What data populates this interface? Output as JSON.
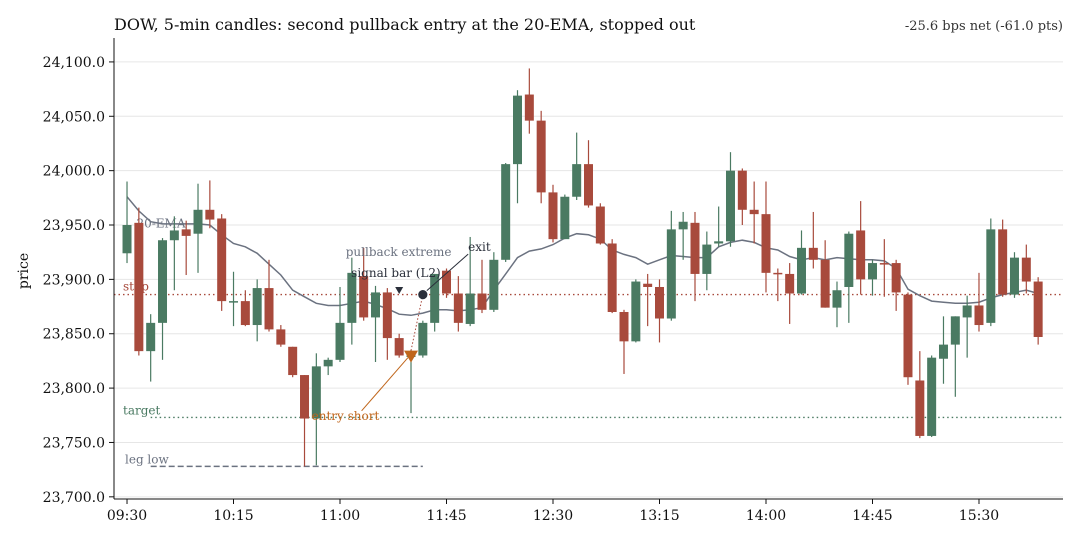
{
  "chart_data": {
    "type": "candlestick",
    "title": "DOW, 5-min candles: second pullback entry at the 20-EMA, stopped out",
    "subtitle": "-25.6 bps net (-61.0 pts)",
    "ylabel": "price",
    "xlabel": "",
    "ylim": [
      23698,
      24122
    ],
    "yticks": [
      23700,
      23750,
      23800,
      23850,
      23900,
      23950,
      24000,
      24050,
      24100
    ],
    "ytick_labels": [
      "23,700.0",
      "23,750.0",
      "23,800.0",
      "23,850.0",
      "23,900.0",
      "23,950.0",
      "24,000.0",
      "24,050.0",
      "24,100.0"
    ],
    "xlim": [
      -1.1,
      79.1
    ],
    "xticks": [
      0,
      9,
      18,
      27,
      36,
      45,
      54,
      63,
      72
    ],
    "xtick_labels": [
      "09:30",
      "10:15",
      "11:00",
      "11:45",
      "12:30",
      "13:15",
      "14:00",
      "14:45",
      "15:30"
    ],
    "grid": "horizontal",
    "colors": {
      "up": "#4a7a62",
      "down": "#a84a3c",
      "ema": "#6b7280",
      "stop": "#a84a3c",
      "target": "#4a7a62",
      "leg_low": "#6b7280",
      "entry": "#c0661c",
      "exit": "#2a2f3a",
      "signal": "#2a2f3a"
    },
    "candles": [
      {
        "t": 0,
        "o": 23924,
        "h": 23990,
        "l": 23915,
        "c": 23950
      },
      {
        "t": 1,
        "o": 23952,
        "h": 23966,
        "l": 23830,
        "c": 23834
      },
      {
        "t": 2,
        "o": 23834,
        "h": 23868,
        "l": 23806,
        "c": 23860
      },
      {
        "t": 3,
        "o": 23860,
        "h": 23938,
        "l": 23826,
        "c": 23936
      },
      {
        "t": 4,
        "o": 23936,
        "h": 23958,
        "l": 23890,
        "c": 23945
      },
      {
        "t": 5,
        "o": 23946,
        "h": 23954,
        "l": 23904,
        "c": 23940
      },
      {
        "t": 6,
        "o": 23942,
        "h": 23988,
        "l": 23906,
        "c": 23964
      },
      {
        "t": 7,
        "o": 23964,
        "h": 23991,
        "l": 23947,
        "c": 23955
      },
      {
        "t": 8,
        "o": 23956,
        "h": 23960,
        "l": 23871,
        "c": 23880
      },
      {
        "t": 9,
        "o": 23880,
        "h": 23907,
        "l": 23857,
        "c": 23880
      },
      {
        "t": 10,
        "o": 23880,
        "h": 23890,
        "l": 23857,
        "c": 23858
      },
      {
        "t": 11,
        "o": 23858,
        "h": 23900,
        "l": 23843,
        "c": 23892
      },
      {
        "t": 12,
        "o": 23892,
        "h": 23918,
        "l": 23852,
        "c": 23854
      },
      {
        "t": 13,
        "o": 23854,
        "h": 23858,
        "l": 23838,
        "c": 23840
      },
      {
        "t": 14,
        "o": 23838,
        "h": 23838,
        "l": 23810,
        "c": 23812
      },
      {
        "t": 15,
        "o": 23812,
        "h": 23812,
        "l": 23728,
        "c": 23772
      },
      {
        "t": 16,
        "o": 23772,
        "h": 23832,
        "l": 23729,
        "c": 23820
      },
      {
        "t": 17,
        "o": 23820,
        "h": 23828,
        "l": 23812,
        "c": 23826
      },
      {
        "t": 18,
        "o": 23826,
        "h": 23893,
        "l": 23824,
        "c": 23860
      },
      {
        "t": 19,
        "o": 23860,
        "h": 23920,
        "l": 23840,
        "c": 23906
      },
      {
        "t": 20,
        "o": 23903,
        "h": 23929,
        "l": 23862,
        "c": 23865
      },
      {
        "t": 21,
        "o": 23865,
        "h": 23894,
        "l": 23824,
        "c": 23888
      },
      {
        "t": 22,
        "o": 23888,
        "h": 23892,
        "l": 23826,
        "c": 23846
      },
      {
        "t": 23,
        "o": 23846,
        "h": 23850,
        "l": 23828,
        "c": 23830
      },
      {
        "t": 24,
        "o": 23830,
        "h": 23835,
        "l": 23777,
        "c": 23830
      },
      {
        "t": 25,
        "o": 23830,
        "h": 23862,
        "l": 23828,
        "c": 23860
      },
      {
        "t": 26,
        "o": 23860,
        "h": 23905,
        "l": 23852,
        "c": 23905
      },
      {
        "t": 27,
        "o": 23908,
        "h": 23910,
        "l": 23883,
        "c": 23887
      },
      {
        "t": 28,
        "o": 23887,
        "h": 23903,
        "l": 23852,
        "c": 23860
      },
      {
        "t": 29,
        "o": 23859,
        "h": 23939,
        "l": 23857,
        "c": 23887
      },
      {
        "t": 30,
        "o": 23887,
        "h": 23918,
        "l": 23869,
        "c": 23872
      },
      {
        "t": 31,
        "o": 23872,
        "h": 23925,
        "l": 23870,
        "c": 23918
      },
      {
        "t": 32,
        "o": 23918,
        "h": 24007,
        "l": 23916,
        "c": 24006
      },
      {
        "t": 33,
        "o": 24006,
        "h": 24074,
        "l": 23970,
        "c": 24069
      },
      {
        "t": 34,
        "o": 24070,
        "h": 24094,
        "l": 24034,
        "c": 24046
      },
      {
        "t": 35,
        "o": 24046,
        "h": 24055,
        "l": 23970,
        "c": 23980
      },
      {
        "t": 36,
        "o": 23980,
        "h": 23987,
        "l": 23934,
        "c": 23937
      },
      {
        "t": 37,
        "o": 23937,
        "h": 23978,
        "l": 23937,
        "c": 23976
      },
      {
        "t": 38,
        "o": 23976,
        "h": 24035,
        "l": 23973,
        "c": 24006
      },
      {
        "t": 39,
        "o": 24006,
        "h": 24028,
        "l": 23966,
        "c": 23968
      },
      {
        "t": 40,
        "o": 23967,
        "h": 23970,
        "l": 23932,
        "c": 23933
      },
      {
        "t": 41,
        "o": 23933,
        "h": 23937,
        "l": 23869,
        "c": 23870
      },
      {
        "t": 42,
        "o": 23870,
        "h": 23872,
        "l": 23813,
        "c": 23843
      },
      {
        "t": 43,
        "o": 23843,
        "h": 23900,
        "l": 23842,
        "c": 23898
      },
      {
        "t": 44,
        "o": 23896,
        "h": 23905,
        "l": 23857,
        "c": 23893
      },
      {
        "t": 45,
        "o": 23893,
        "h": 23900,
        "l": 23842,
        "c": 23864
      },
      {
        "t": 46,
        "o": 23864,
        "h": 23963,
        "l": 23862,
        "c": 23946
      },
      {
        "t": 47,
        "o": 23946,
        "h": 23962,
        "l": 23918,
        "c": 23953
      },
      {
        "t": 48,
        "o": 23952,
        "h": 23962,
        "l": 23880,
        "c": 23905
      },
      {
        "t": 49,
        "o": 23905,
        "h": 23944,
        "l": 23890,
        "c": 23932
      },
      {
        "t": 50,
        "o": 23933,
        "h": 23967,
        "l": 23930,
        "c": 23935
      },
      {
        "t": 51,
        "o": 23935,
        "h": 24017,
        "l": 23930,
        "c": 24000
      },
      {
        "t": 52,
        "o": 24000,
        "h": 24002,
        "l": 23950,
        "c": 23964
      },
      {
        "t": 53,
        "o": 23964,
        "h": 23990,
        "l": 23933,
        "c": 23960
      },
      {
        "t": 54,
        "o": 23960,
        "h": 23990,
        "l": 23888,
        "c": 23906
      },
      {
        "t": 55,
        "o": 23906,
        "h": 23910,
        "l": 23880,
        "c": 23905
      },
      {
        "t": 56,
        "o": 23905,
        "h": 23915,
        "l": 23859,
        "c": 23887
      },
      {
        "t": 57,
        "o": 23887,
        "h": 23945,
        "l": 23886,
        "c": 23929
      },
      {
        "t": 58,
        "o": 23929,
        "h": 23962,
        "l": 23910,
        "c": 23918
      },
      {
        "t": 59,
        "o": 23918,
        "h": 23936,
        "l": 23874,
        "c": 23874
      },
      {
        "t": 60,
        "o": 23874,
        "h": 23898,
        "l": 23856,
        "c": 23890
      },
      {
        "t": 61,
        "o": 23893,
        "h": 23944,
        "l": 23860,
        "c": 23942
      },
      {
        "t": 62,
        "o": 23945,
        "h": 23972,
        "l": 23886,
        "c": 23900
      },
      {
        "t": 63,
        "o": 23900,
        "h": 23918,
        "l": 23885,
        "c": 23915
      },
      {
        "t": 64,
        "o": 23915,
        "h": 23937,
        "l": 23884,
        "c": 23914
      },
      {
        "t": 65,
        "o": 23915,
        "h": 23918,
        "l": 23871,
        "c": 23888
      },
      {
        "t": 66,
        "o": 23886,
        "h": 23888,
        "l": 23803,
        "c": 23810
      },
      {
        "t": 67,
        "o": 23807,
        "h": 23834,
        "l": 23754,
        "c": 23756
      },
      {
        "t": 68,
        "o": 23756,
        "h": 23830,
        "l": 23755,
        "c": 23828
      },
      {
        "t": 69,
        "o": 23827,
        "h": 23866,
        "l": 23804,
        "c": 23840
      },
      {
        "t": 70,
        "o": 23840,
        "h": 23866,
        "l": 23792,
        "c": 23866
      },
      {
        "t": 71,
        "o": 23865,
        "h": 23885,
        "l": 23828,
        "c": 23876
      },
      {
        "t": 72,
        "o": 23876,
        "h": 23906,
        "l": 23852,
        "c": 23858
      },
      {
        "t": 73,
        "o": 23860,
        "h": 23956,
        "l": 23857,
        "c": 23946
      },
      {
        "t": 74,
        "o": 23946,
        "h": 23955,
        "l": 23884,
        "c": 23886
      },
      {
        "t": 75,
        "o": 23886,
        "h": 23925,
        "l": 23883,
        "c": 23920
      },
      {
        "t": 76,
        "o": 23920,
        "h": 23932,
        "l": 23887,
        "c": 23898
      },
      {
        "t": 77,
        "o": 23898,
        "h": 23902,
        "l": 23840,
        "c": 23847
      }
    ],
    "ema": {
      "name": "20-EMA",
      "points": [
        [
          0,
          23976
        ],
        [
          1,
          23963
        ],
        [
          2,
          23953
        ],
        [
          3,
          23951
        ],
        [
          4,
          23951
        ],
        [
          5,
          23951
        ],
        [
          6,
          23951
        ],
        [
          7,
          23950
        ],
        [
          8,
          23941
        ],
        [
          9,
          23933
        ],
        [
          10,
          23930
        ],
        [
          11,
          23924
        ],
        [
          12,
          23914
        ],
        [
          13,
          23904
        ],
        [
          14,
          23890
        ],
        [
          15,
          23884
        ],
        [
          16,
          23878
        ],
        [
          17,
          23876
        ],
        [
          18,
          23876
        ],
        [
          19,
          23878
        ],
        [
          20,
          23880
        ],
        [
          21,
          23877
        ],
        [
          22,
          23873
        ],
        [
          23,
          23868
        ],
        [
          24,
          23867
        ],
        [
          25,
          23869
        ],
        [
          26,
          23872
        ],
        [
          27,
          23872
        ],
        [
          28,
          23871
        ],
        [
          29,
          23872
        ],
        [
          30,
          23874
        ],
        [
          31,
          23890
        ],
        [
          32,
          23905
        ],
        [
          33,
          23920
        ],
        [
          34,
          23926
        ],
        [
          35,
          23928
        ],
        [
          36,
          23932
        ],
        [
          37,
          23938
        ],
        [
          38,
          23942
        ],
        [
          39,
          23941
        ],
        [
          40,
          23937
        ],
        [
          41,
          23927
        ],
        [
          42,
          23923
        ],
        [
          43,
          23920
        ],
        [
          44,
          23914
        ],
        [
          45,
          23918
        ],
        [
          46,
          23922
        ],
        [
          47,
          23921
        ],
        [
          48,
          23920
        ],
        [
          49,
          23920
        ],
        [
          50,
          23930
        ],
        [
          51,
          23934
        ],
        [
          52,
          23936
        ],
        [
          53,
          23934
        ],
        [
          54,
          23929
        ],
        [
          55,
          23927
        ],
        [
          56,
          23921
        ],
        [
          57,
          23918
        ],
        [
          58,
          23920
        ],
        [
          59,
          23918
        ],
        [
          60,
          23920
        ],
        [
          61,
          23919
        ],
        [
          62,
          23918
        ],
        [
          63,
          23918
        ],
        [
          64,
          23917
        ],
        [
          65,
          23910
        ],
        [
          66,
          23891
        ],
        [
          67,
          23885
        ],
        [
          68,
          23880
        ],
        [
          69,
          23879
        ],
        [
          70,
          23878
        ],
        [
          71,
          23878
        ],
        [
          72,
          23879
        ],
        [
          73,
          23883
        ],
        [
          74,
          23886
        ],
        [
          75,
          23888
        ],
        [
          76,
          23890
        ],
        [
          77,
          23887
        ]
      ]
    },
    "levels": {
      "stop": {
        "label": "stop",
        "price": 23886
      },
      "target": {
        "label": "target",
        "price": 23773
      },
      "leg_low": {
        "label": "leg low",
        "price": 23728,
        "x_end": 25
      }
    },
    "annotations": {
      "pullback_extreme": {
        "label": "pullback extreme",
        "t": 19.5,
        "price": 23928
      },
      "signal_bar": {
        "label": "signal bar (L2)",
        "t": 23,
        "price": 23893
      },
      "entry": {
        "label": "entry short",
        "t": 24,
        "price": 23829,
        "label_t": 15.6,
        "label_price": 23780
      },
      "exit": {
        "label": "exit",
        "t": 25,
        "price": 23886,
        "label_t": 29,
        "label_price": 23926
      }
    }
  }
}
